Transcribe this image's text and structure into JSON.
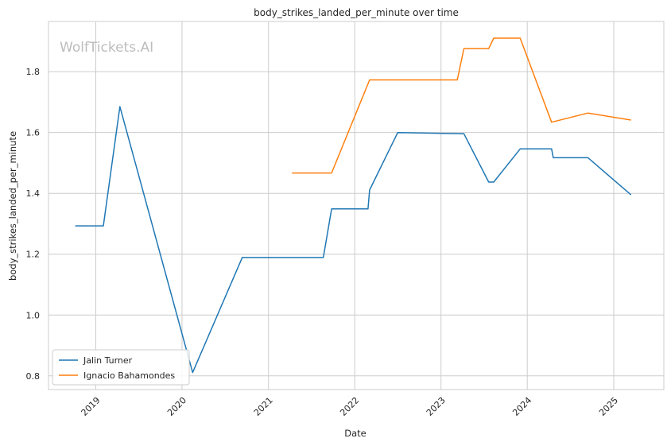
{
  "watermark": "WolfTickets.AI",
  "chart_data": {
    "type": "line",
    "title": "body_strikes_landed_per_minute over time",
    "xlabel": "Date",
    "ylabel": "body_strikes_landed_per_minute",
    "xlim": [
      "2018-06-15",
      "2025-08-01"
    ],
    "ylim": [
      0.755,
      1.965
    ],
    "x_ticks": [
      "2019",
      "2020",
      "2021",
      "2022",
      "2023",
      "2024",
      "2025"
    ],
    "y_ticks": [
      "0.8",
      "1.0",
      "1.2",
      "1.4",
      "1.6",
      "1.8"
    ],
    "grid": true,
    "legend_position": "lower-left",
    "series": [
      {
        "name": "Jalin Turner",
        "color": "#1f77b4",
        "points": [
          [
            "2018-10-06",
            1.293
          ],
          [
            "2019-02-02",
            1.293
          ],
          [
            "2019-04-13",
            1.685
          ],
          [
            "2020-02-15",
            0.811
          ],
          [
            "2020-09-12",
            1.189
          ],
          [
            "2021-08-21",
            1.189
          ],
          [
            "2021-09-25",
            1.349
          ],
          [
            "2022-02-26",
            1.349
          ],
          [
            "2022-03-05",
            1.411
          ],
          [
            "2022-07-02",
            1.6
          ],
          [
            "2023-04-08",
            1.596
          ],
          [
            "2023-07-22",
            1.437
          ],
          [
            "2023-08-12",
            1.437
          ],
          [
            "2023-12-02",
            1.546
          ],
          [
            "2024-04-13",
            1.546
          ],
          [
            "2024-04-20",
            1.517
          ],
          [
            "2024-09-14",
            1.517
          ],
          [
            "2025-03-15",
            1.395
          ]
        ]
      },
      {
        "name": "Ignacio Bahamondes",
        "color": "#ff7f0e",
        "points": [
          [
            "2021-04-10",
            1.467
          ],
          [
            "2021-09-25",
            1.467
          ],
          [
            "2022-03-05",
            1.773
          ],
          [
            "2023-03-11",
            1.773
          ],
          [
            "2023-04-08",
            1.876
          ],
          [
            "2023-07-22",
            1.876
          ],
          [
            "2023-08-12",
            1.91
          ],
          [
            "2023-12-02",
            1.91
          ],
          [
            "2024-04-13",
            1.634
          ],
          [
            "2024-09-14",
            1.664
          ],
          [
            "2025-03-15",
            1.641
          ]
        ]
      }
    ]
  }
}
